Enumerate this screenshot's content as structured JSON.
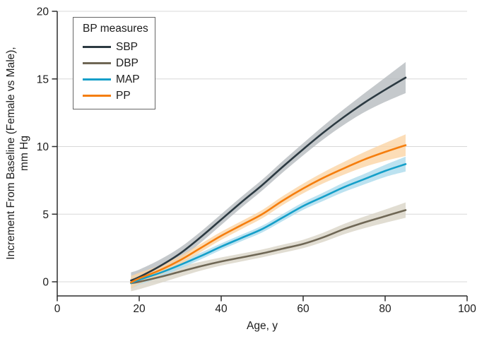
{
  "figure": {
    "background": "#ffffff"
  },
  "chart_data": {
    "type": "line",
    "title": "",
    "xlabel": "Age, y",
    "ylabel_lines": [
      "Increment From Baseline (Female vs Male),",
      "mm Hg"
    ],
    "xlim": [
      0,
      100
    ],
    "ylim": [
      0,
      20
    ],
    "xticks": [
      0,
      20,
      40,
      60,
      80,
      100
    ],
    "yticks": [
      0,
      5,
      10,
      15,
      20
    ],
    "grid": "horizontal gridlines at each y tick",
    "legend_title": "BP measures",
    "legend_position": "top-left",
    "x": [
      18,
      20,
      25,
      30,
      35,
      40,
      45,
      50,
      55,
      60,
      65,
      70,
      75,
      80,
      85
    ],
    "series": [
      {
        "name": "SBP",
        "color": "#2c3a42",
        "band_color": "#b7bcbf",
        "values": [
          0.1,
          0.35,
          1.15,
          2.1,
          3.3,
          4.6,
          5.9,
          7.15,
          8.5,
          9.8,
          11.05,
          12.2,
          13.25,
          14.2,
          15.1
        ],
        "ci_half": [
          0.6,
          0.55,
          0.48,
          0.44,
          0.41,
          0.4,
          0.4,
          0.4,
          0.42,
          0.45,
          0.5,
          0.58,
          0.7,
          0.9,
          1.15
        ]
      },
      {
        "name": "DBP",
        "color": "#6f6755",
        "band_color": "#d9d4c7",
        "values": [
          -0.1,
          0.0,
          0.35,
          0.75,
          1.15,
          1.5,
          1.8,
          2.1,
          2.45,
          2.8,
          3.3,
          3.9,
          4.4,
          4.85,
          5.3
        ],
        "ci_half": [
          0.6,
          0.55,
          0.45,
          0.38,
          0.33,
          0.3,
          0.29,
          0.29,
          0.3,
          0.31,
          0.34,
          0.38,
          0.43,
          0.49,
          0.57
        ]
      },
      {
        "name": "MAP",
        "color": "#149fc9",
        "band_color": "#abdbec",
        "values": [
          -0.1,
          0.15,
          0.65,
          1.25,
          1.9,
          2.6,
          3.25,
          3.9,
          4.75,
          5.6,
          6.3,
          7.0,
          7.6,
          8.2,
          8.7
        ],
        "ci_half": [
          0.4,
          0.37,
          0.31,
          0.27,
          0.25,
          0.24,
          0.24,
          0.25,
          0.26,
          0.28,
          0.31,
          0.35,
          0.39,
          0.45,
          0.55
        ]
      },
      {
        "name": "PP",
        "color": "#f57e0e",
        "band_color": "#fbd4a5",
        "values": [
          -0.05,
          0.25,
          0.85,
          1.6,
          2.5,
          3.4,
          4.2,
          5.0,
          6.0,
          6.9,
          7.7,
          8.4,
          9.05,
          9.6,
          10.1
        ],
        "ci_half": [
          0.45,
          0.42,
          0.36,
          0.32,
          0.3,
          0.3,
          0.3,
          0.31,
          0.33,
          0.36,
          0.41,
          0.47,
          0.55,
          0.66,
          0.8
        ]
      }
    ],
    "axis_color": "#2d2d2d",
    "grid_color": "#d8d8d8",
    "text_color": "#1c1c1c"
  }
}
